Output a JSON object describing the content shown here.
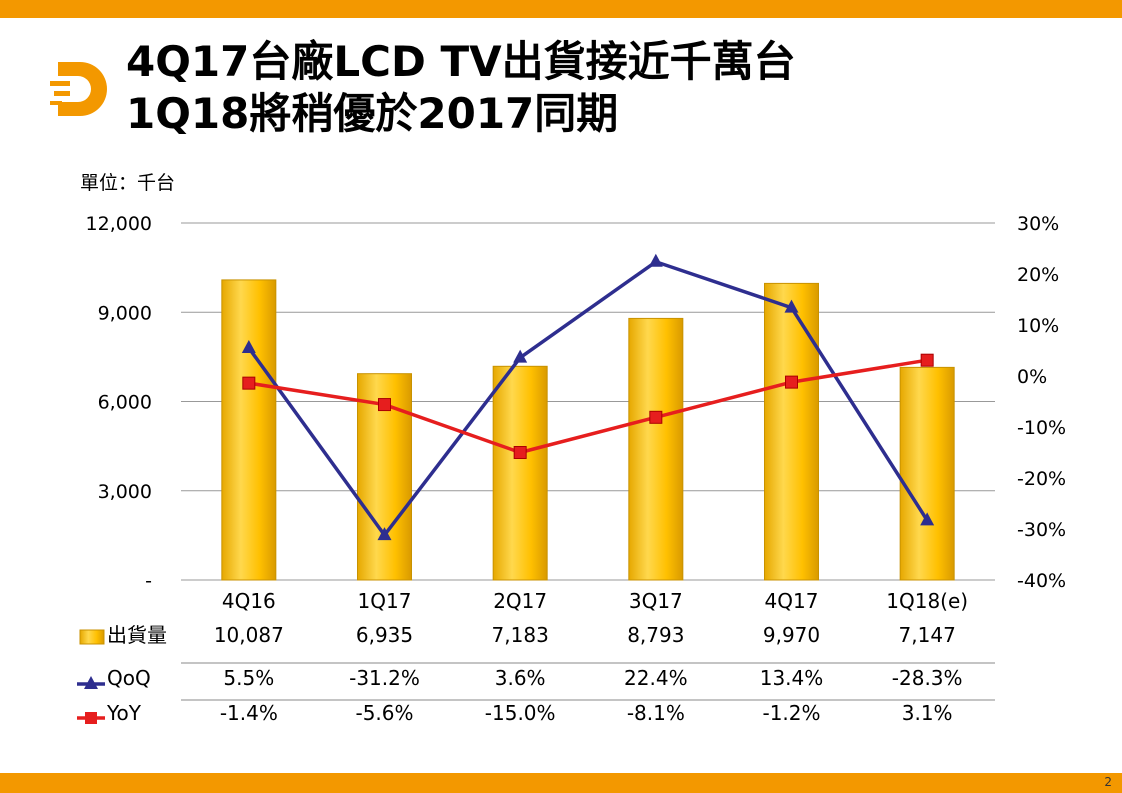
{
  "title_line1": "4Q17台廠LCD TV出貨接近千萬台",
  "title_line2": "1Q18將稍優於2017同期",
  "unit_label": "單位：千台",
  "page_number": "2",
  "colors": {
    "bar": "#ffc000",
    "qoq": "#2e2e8f",
    "yoy": "#e61e1e",
    "accent": "#f39800"
  },
  "chart_data": {
    "type": "bar",
    "categories": [
      "4Q16",
      "1Q17",
      "2Q17",
      "3Q17",
      "4Q17",
      "1Q18(e)"
    ],
    "y_left": {
      "min": 0,
      "max": 12000,
      "ticks": [
        0,
        3000,
        6000,
        9000,
        12000
      ],
      "tick_labels": [
        "-",
        "3,000",
        "6,000",
        "9,000",
        "12,000"
      ]
    },
    "y_right": {
      "min": -40,
      "max": 30,
      "ticks": [
        30,
        20,
        10,
        0,
        -10,
        -20,
        -30,
        -40
      ],
      "tick_labels": [
        "30%",
        "20%",
        "10%",
        "0%",
        "-10%",
        "-20%",
        "-30%",
        "-40%"
      ]
    },
    "grid": true,
    "series": [
      {
        "name": "出貨量",
        "kind": "bar",
        "axis": "left",
        "values": [
          10087,
          6935,
          7183,
          8793,
          9970,
          7147
        ],
        "labels": [
          "10,087",
          "6,935",
          "7,183",
          "8,793",
          "9,970",
          "7,147"
        ]
      },
      {
        "name": "QoQ",
        "kind": "line",
        "axis": "right",
        "marker": "triangle",
        "values": [
          5.5,
          -31.2,
          3.6,
          22.4,
          13.4,
          -28.3
        ],
        "labels": [
          "5.5%",
          "-31.2%",
          "3.6%",
          "22.4%",
          "13.4%",
          "-28.3%"
        ]
      },
      {
        "name": "YoY",
        "kind": "line",
        "axis": "right",
        "marker": "square",
        "values": [
          -1.4,
          -5.6,
          -15.0,
          -8.1,
          -1.2,
          3.1
        ],
        "labels": [
          "-1.4%",
          "-5.6%",
          "-15.0%",
          "-8.1%",
          "-1.2%",
          "3.1%"
        ]
      }
    ]
  }
}
